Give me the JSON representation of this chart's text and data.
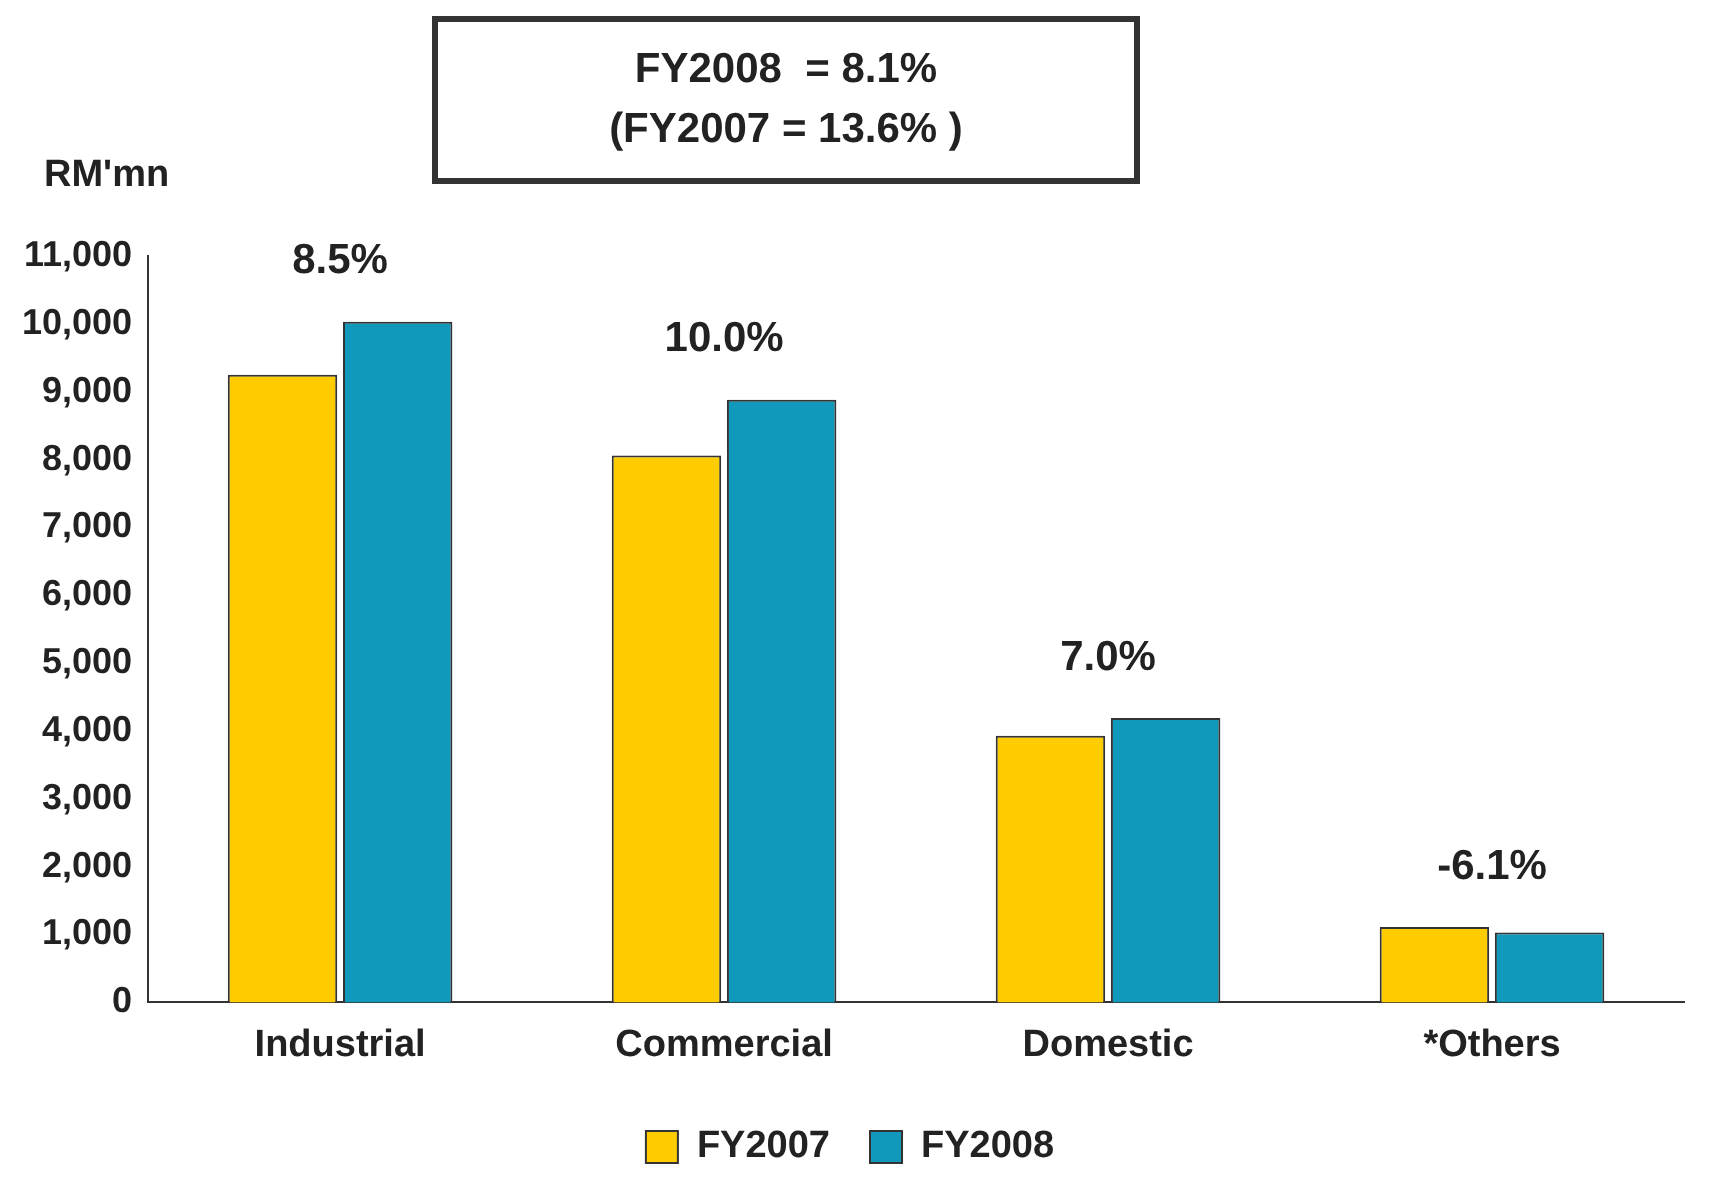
{
  "chart_data": {
    "type": "bar",
    "ylabel": "RM'mn",
    "categories": [
      "Industrial",
      "Commercial",
      "Domestic",
      "*Others"
    ],
    "series": [
      {
        "name": "FY2007",
        "color": "#ffcc00",
        "values": [
          9250,
          8060,
          3930,
          1110
        ]
      },
      {
        "name": "FY2008",
        "color": "#1199bb",
        "values": [
          10030,
          8880,
          4190,
          1030
        ]
      }
    ],
    "ylim": [
      0,
      11000
    ],
    "yticks": [
      {
        "value": 0,
        "label": "0"
      },
      {
        "value": 1000,
        "label": "1,000"
      },
      {
        "value": 2000,
        "label": "2,000"
      },
      {
        "value": 3000,
        "label": "3,000"
      },
      {
        "value": 4000,
        "label": "4,000"
      },
      {
        "value": 5000,
        "label": "5,000"
      },
      {
        "value": 6000,
        "label": "6,000"
      },
      {
        "value": 7000,
        "label": "7,000"
      },
      {
        "value": 8000,
        "label": "8,000"
      },
      {
        "value": 9000,
        "label": "9,000"
      },
      {
        "value": 10000,
        "label": "10,000"
      },
      {
        "value": 11000,
        "label": "11,000"
      }
    ],
    "grid": false,
    "legend": "bottom",
    "annotations": [
      "FY2008  = 8.1%",
      "(FY2007 = 13.6% )",
      {
        "text": "8.5%",
        "x": "Industrial",
        "y": 10030
      },
      {
        "text": "10.0%",
        "x": "Commercial",
        "y": 8880
      },
      {
        "text": "7.0%",
        "x": "Domestic",
        "y": 4190
      },
      {
        "text": "-6.1%",
        "x": "*Others",
        "y": 1110
      }
    ]
  }
}
